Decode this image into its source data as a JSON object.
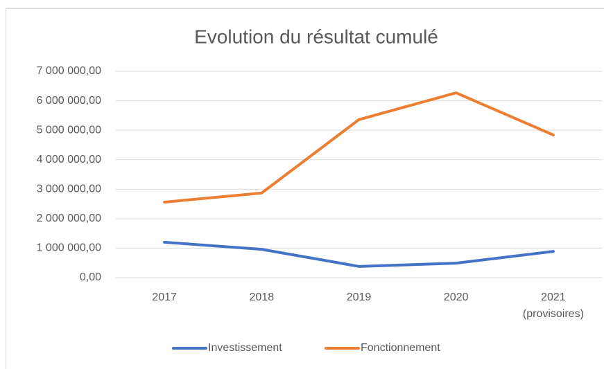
{
  "chart_data": {
    "type": "line",
    "title": "Evolution du résultat cumulé",
    "categories": [
      "2017",
      "2018",
      "2019",
      "2020",
      "2021\n(provisoires)"
    ],
    "series": [
      {
        "name": "Investissement",
        "color": "#4472c4",
        "values": [
          1200000,
          960000,
          380000,
          490000,
          890000
        ]
      },
      {
        "name": "Fonctionnement",
        "color": "#ed7d31",
        "values": [
          2560000,
          2870000,
          5360000,
          6270000,
          4840000
        ]
      }
    ],
    "ylim": [
      0,
      7000000
    ],
    "yticks": [
      {
        "value": 0,
        "label": "0,00"
      },
      {
        "value": 1000000,
        "label": "1 000 000,00"
      },
      {
        "value": 2000000,
        "label": "2 000 000,00"
      },
      {
        "value": 3000000,
        "label": "3 000 000,00"
      },
      {
        "value": 4000000,
        "label": "4 000 000,00"
      },
      {
        "value": 5000000,
        "label": "5 000 000,00"
      },
      {
        "value": 6000000,
        "label": "6 000 000,00"
      },
      {
        "value": 7000000,
        "label": "7 000 000,00"
      }
    ],
    "grid": true,
    "legend": "bottom"
  }
}
